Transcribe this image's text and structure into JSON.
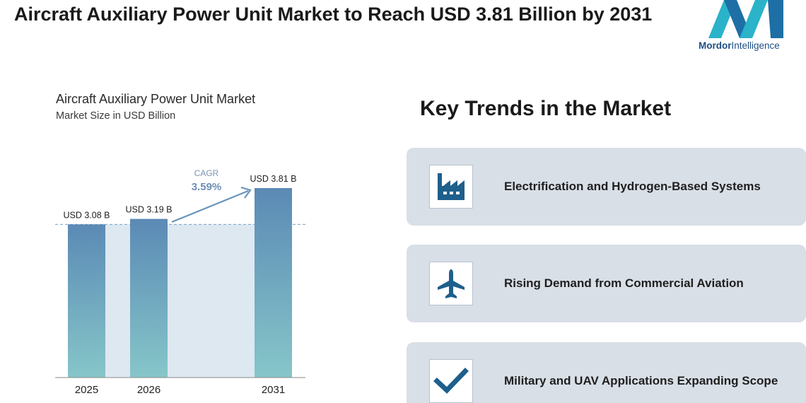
{
  "headline": "Aircraft Auxiliary Power Unit Market to Reach USD 3.81 Billion by 2031",
  "logo": {
    "brand_bold": "Mordor",
    "brand_light": "Intelligence"
  },
  "chart_data": {
    "type": "bar",
    "title": "Aircraft Auxiliary Power Unit Market",
    "subtitle": "Market Size in USD Billion",
    "categories": [
      "2025",
      "2026",
      "2031"
    ],
    "values": [
      3.08,
      3.19,
      3.81
    ],
    "data_labels": [
      "USD 3.08 B",
      "USD 3.19 B",
      "USD 3.81 B"
    ],
    "cagr_label": "CAGR",
    "cagr_value": "3.59%",
    "ylim": [
      0,
      3.81
    ],
    "bar_color_top": "#5b8ab5",
    "bar_color_bottom": "#86c6c9",
    "band_color": "#dde8f1",
    "arrow_color": "#6a94ba"
  },
  "trends": {
    "title": "Key Trends in the Market",
    "items": [
      {
        "label": "Electrification and Hydrogen-Based Systems",
        "icon": "factory-icon"
      },
      {
        "label": "Rising Demand from Commercial Aviation",
        "icon": "airplane-icon"
      },
      {
        "label": "Military and UAV Applications Expanding Scope",
        "icon": "checkmark-icon"
      }
    ]
  },
  "colors": {
    "icon": "#1e5f8c",
    "card": "#d9dfe7",
    "brand": "#1e4f87",
    "logo_teal": "#2ab3c9"
  }
}
